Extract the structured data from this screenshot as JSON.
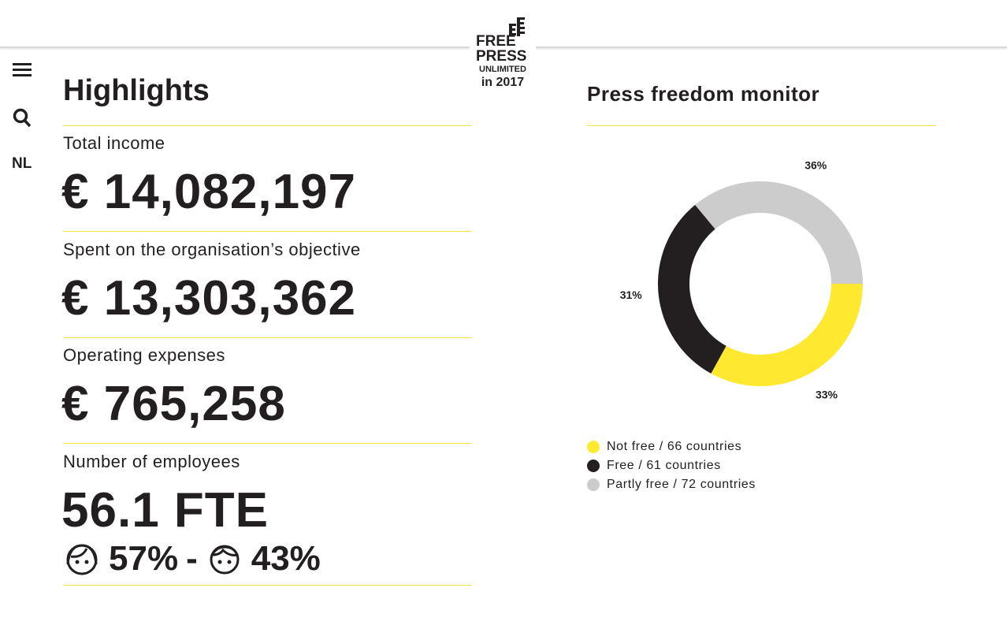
{
  "sidebar": {
    "lang": "NL"
  },
  "logo": {
    "free": "FREE",
    "press": "PRESS",
    "unlimited": "UNLIMITED",
    "year": "in 2017"
  },
  "highlights": {
    "title": "Highlights",
    "items": [
      {
        "label": "Total income",
        "value": "€ 14,082,197"
      },
      {
        "label": "Spent on the organisation’s objective",
        "value": "€ 13,303,362"
      },
      {
        "label": "Operating expenses",
        "value": "€ 765,258"
      }
    ],
    "employees": {
      "label": "Number of employees",
      "value": "56.1 FTE",
      "female": "57%",
      "separator": "-",
      "male": "43%"
    }
  },
  "chart_data": {
    "type": "pie",
    "donut": true,
    "title": "Press freedom monitor",
    "categories": [
      "Not free / 66 countries",
      "Free / 61 countries",
      "Partly free / 72 countries"
    ],
    "values": [
      33,
      31,
      36
    ],
    "value_labels": [
      "33%",
      "31%",
      "36%"
    ],
    "colors": [
      "#ffe930",
      "#231f20",
      "#cccccc"
    ]
  }
}
